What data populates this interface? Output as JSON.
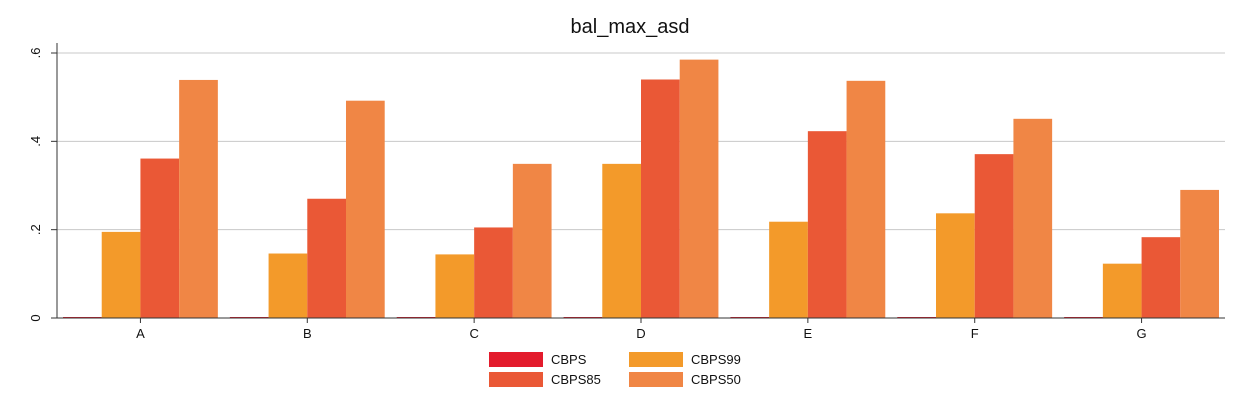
{
  "chart_data": {
    "type": "bar",
    "title": "bal_max_asd",
    "xlabel": "",
    "ylabel": "",
    "categories": [
      "A",
      "B",
      "C",
      "D",
      "E",
      "F",
      "G"
    ],
    "ylim": [
      0,
      0.6
    ],
    "yticks": [
      0,
      0.2,
      0.4,
      0.6
    ],
    "ytick_labels": [
      "0",
      ".2",
      ".4",
      ".6"
    ],
    "grid": true,
    "legend_position": "bottom",
    "series": [
      {
        "name": "CBPS",
        "color": "#e31b2c",
        "values": [
          0.001,
          0.001,
          0.001,
          0.001,
          0.001,
          0.001,
          0.001
        ]
      },
      {
        "name": "CBPS99",
        "color": "#f39a2a",
        "values": [
          0.195,
          0.146,
          0.144,
          0.349,
          0.218,
          0.237,
          0.123
        ]
      },
      {
        "name": "CBPS85",
        "color": "#ea5836",
        "values": [
          0.361,
          0.27,
          0.205,
          0.54,
          0.423,
          0.371,
          0.183
        ]
      },
      {
        "name": "CBPS50",
        "color": "#f08645",
        "values": [
          0.539,
          0.492,
          0.349,
          0.585,
          0.537,
          0.451,
          0.29
        ]
      }
    ]
  }
}
